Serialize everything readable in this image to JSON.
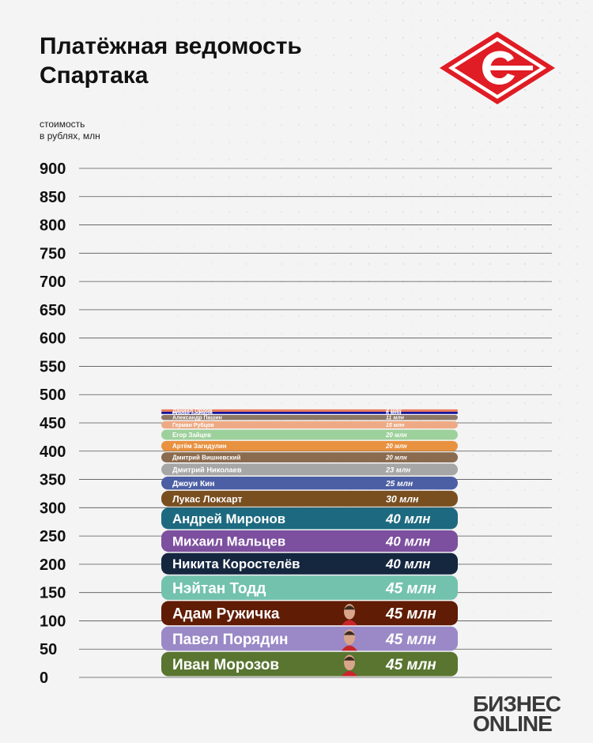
{
  "title_lines": [
    "Платёжная ведомость",
    "Спартака"
  ],
  "ylabel_lines": [
    "стоимость",
    "в рублях, млн"
  ],
  "brand_lines": [
    "БИЗНЕС",
    "ONLINE"
  ],
  "colors": {
    "background": "#f4f4f5",
    "logo_red": "#e01c24",
    "grid": "#555555"
  },
  "chart_data": {
    "type": "bar",
    "orientation": "stacked-horizontal-bands",
    "ylim": [
      0,
      900
    ],
    "yticks": [
      0,
      50,
      100,
      150,
      200,
      250,
      300,
      350,
      400,
      450,
      500,
      550,
      600,
      650,
      700,
      750,
      800,
      850,
      900
    ],
    "total": 500,
    "unit_label": "млн",
    "bars": [
      {
        "name": "Иван Морозов",
        "value": 45,
        "value_label": "45 млн",
        "color": "#597530",
        "photo": true
      },
      {
        "name": "Павел Порядин",
        "value": 45,
        "value_label": "45 млн",
        "color": "#9a89c6",
        "photo": true
      },
      {
        "name": "Адам Ружичка",
        "value": 45,
        "value_label": "45 млн",
        "color": "#601c04",
        "photo": true
      },
      {
        "name": "Нэйтан Тодд",
        "value": 45,
        "value_label": "45 млн",
        "color": "#72c2ae"
      },
      {
        "name": "Никита Коростелёв",
        "value": 40,
        "value_label": "40 млн",
        "color": "#15263f"
      },
      {
        "name": "Михаил Мальцев",
        "value": 40,
        "value_label": "40 млн",
        "color": "#7d4f9f"
      },
      {
        "name": "Андрей Миронов",
        "value": 40,
        "value_label": "40 млн",
        "color": "#1d6a80"
      },
      {
        "name": "Лукас Локхарт",
        "value": 30,
        "value_label": "30 млн",
        "color": "#7a4f20"
      },
      {
        "name": "Джоуи Кин",
        "value": 25,
        "value_label": "25 млн",
        "color": "#4c5ea4"
      },
      {
        "name": "Дмитрий Николаев",
        "value": 23,
        "value_label": "23 млн",
        "color": "#a6a6a6"
      },
      {
        "name": "Дмитрий Вишневский",
        "value": 20,
        "value_label": "20 млн",
        "color": "#8a6b4f"
      },
      {
        "name": "Артём Загидулин",
        "value": 20,
        "value_label": "20 млн",
        "color": "#e8913f"
      },
      {
        "name": "Егор Зайцев",
        "value": 20,
        "value_label": "20 млн",
        "color": "#9dd19b"
      },
      {
        "name": "Герман Рубцов",
        "value": 15,
        "value_label": "15 млн",
        "color": "#eeaa84"
      },
      {
        "name": "Александр Пашин",
        "value": 11,
        "value_label": "11 млн",
        "color": "#8b7766"
      },
      {
        "name": "Роман Бычков",
        "value": 6,
        "value_label": "6 млн",
        "color": "#16139b"
      },
      {
        "name": "Даниил Орлов",
        "value": 4,
        "value_label": "4 млн",
        "color": "#ea7c5c"
      }
    ]
  }
}
